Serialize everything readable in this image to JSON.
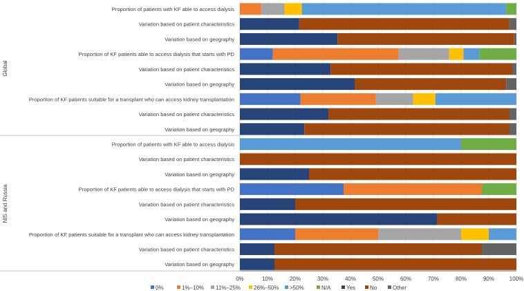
{
  "chart_data": {
    "type": "bar",
    "orientation": "horizontal",
    "stacked": true,
    "xlim": [
      0,
      100
    ],
    "x_ticks": [
      "0%",
      "10%",
      "20%",
      "30%",
      "40%",
      "50%",
      "60%",
      "70%",
      "80%",
      "90%",
      "100%"
    ],
    "grid": true,
    "legend_position": "bottom",
    "legend": [
      {
        "name": "0%",
        "color": "#4472C4"
      },
      {
        "name": "1%–10%",
        "color": "#ED7D31"
      },
      {
        "name": "11%–25%",
        "color": "#A5A5A5"
      },
      {
        "name": "26%–50%",
        "color": "#FFC000"
      },
      {
        "name": ">50%",
        "color": "#5B9BD5"
      },
      {
        "name": "N/A",
        "color": "#70AD47"
      },
      {
        "name": "Yes",
        "color": "#264478"
      },
      {
        "name": "No",
        "color": "#9E480E"
      },
      {
        "name": "Other",
        "color": "#636363"
      }
    ],
    "groups": [
      {
        "name": "Global",
        "rows": [
          {
            "label": "Proportion of patients with KF able to access dialysis",
            "values": {
              "0%": 0,
              "1%–10%": 7.7,
              "11%–25%": 8.5,
              "26%–50%": 6.2,
              ">50%": 73.9,
              "N/A": 3.7
            }
          },
          {
            "label": "Variation based on patient characteristics",
            "values": {
              "Yes": 21.4,
              "No": 76.0,
              "Other": 2.6
            }
          },
          {
            "label": "Variation based on geography",
            "values": {
              "Yes": 35.3,
              "No": 63.9,
              "Other": 0.8
            }
          },
          {
            "label": "Proportion of KF patients able to access dialysis that starts with PD",
            "values": {
              "0%": 11.9,
              "1%–10%": 45.5,
              "11%–25%": 18.3,
              "26%–50%": 5.2,
              ">50%": 5.7,
              "N/A": 13.4
            }
          },
          {
            "label": "Variation based on patient characteristics",
            "values": {
              "Yes": 32.8,
              "No": 65.7,
              "Other": 1.5
            }
          },
          {
            "label": "Variation based on geography",
            "values": {
              "Yes": 41.5,
              "No": 54.8,
              "Other": 3.7
            }
          },
          {
            "label": "Proportion of KF patients suitable for a transplant who can access kidney transplantation",
            "values": {
              "0%": 21.9,
              "1%–10%": 27.3,
              "11%–25%": 13.5,
              "26%–50%": 8.0,
              ">50%": 29.3
            }
          },
          {
            "label": "Variation based on patient characteristics",
            "values": {
              "Yes": 32.0,
              "No": 65.5,
              "Other": 2.5
            }
          },
          {
            "label": "Variation based on geography",
            "values": {
              "Yes": 23.3,
              "No": 74.2,
              "Other": 2.5
            }
          }
        ]
      },
      {
        "name": "NIS and Russia",
        "rows": [
          {
            "label": "Proportion of patients with KF able to access dialysis",
            "values": {
              ">50%": 80,
              "N/A": 20
            }
          },
          {
            "label": "Variation based on patient characteristics",
            "values": {
              "No": 100
            }
          },
          {
            "label": "Variation based on geography",
            "values": {
              "Yes": 25,
              "No": 75
            }
          },
          {
            "label": "Proportion of KF patients able to access dialysis that starts with PD",
            "values": {
              "0%": 37.5,
              "1%–10%": 50,
              "N/A": 12.5
            }
          },
          {
            "label": "Variation based on patient characteristics",
            "values": {
              "Yes": 20,
              "No": 80
            }
          },
          {
            "label": "Variation based on geography",
            "values": {
              "Yes": 71.4,
              "No": 28.6
            }
          },
          {
            "label": "Proportion of KF patients suitable for a transplant who can access kidney transplantation",
            "values": {
              "0%": 20,
              "1%–10%": 30,
              "11%–25%": 30,
              "26%–50%": 10,
              ">50%": 10
            }
          },
          {
            "label": "Variation based on patient characteristics",
            "values": {
              "Yes": 12.5,
              "No": 75,
              "Other": 12.5
            }
          },
          {
            "label": "Variation based on geography",
            "values": {
              "Yes": 12.5,
              "No": 87.5
            }
          }
        ]
      }
    ]
  }
}
